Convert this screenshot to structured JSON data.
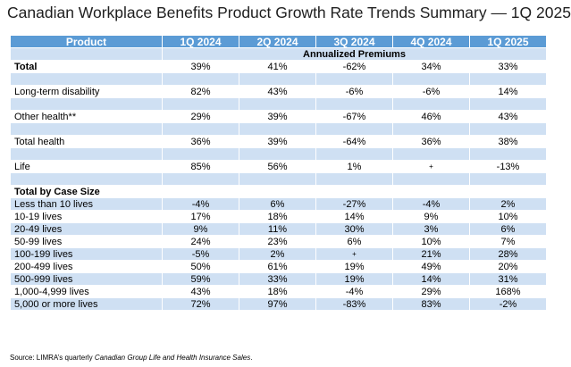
{
  "title": "Canadian Workplace Benefits Product Growth Rate Trends Summary — 1Q 2025",
  "headers": [
    "Product",
    "1Q 2024",
    "2Q 2024",
    "3Q 2024",
    "4Q 2024",
    "1Q 2025"
  ],
  "subheader": "Annualized Premiums",
  "rows": {
    "total": {
      "label": "Total",
      "v": [
        "39%",
        "41%",
        "-62%",
        "34%",
        "33%"
      ]
    },
    "ltd": {
      "label": "Long-term disability",
      "v": [
        "82%",
        "43%",
        "-6%",
        "-6%",
        "14%"
      ]
    },
    "other_health": {
      "label": "Other health**",
      "v": [
        "29%",
        "39%",
        "-67%",
        "46%",
        "43%"
      ]
    },
    "total_health": {
      "label": "Total health",
      "v": [
        "36%",
        "39%",
        "-64%",
        "36%",
        "38%"
      ]
    },
    "life": {
      "label": "Life",
      "v": [
        "85%",
        "56%",
        "1%",
        "+",
        "-13%"
      ]
    }
  },
  "case_size_heading": "Total by Case Size",
  "case_size": [
    {
      "label": "Less than 10 lives",
      "v": [
        "-4%",
        "6%",
        "-27%",
        "-4%",
        "2%"
      ]
    },
    {
      "label": "10-19 lives",
      "v": [
        "17%",
        "18%",
        "14%",
        "9%",
        "10%"
      ]
    },
    {
      "label": "20-49 lives",
      "v": [
        "9%",
        "11%",
        "30%",
        "3%",
        "6%"
      ]
    },
    {
      "label": "50-99 lives",
      "v": [
        "24%",
        "23%",
        "6%",
        "10%",
        "7%"
      ]
    },
    {
      "label": "100-199 lives",
      "v": [
        "-5%",
        "2%",
        "+",
        "21%",
        "28%"
      ]
    },
    {
      "label": "200-499 lives",
      "v": [
        "50%",
        "61%",
        "19%",
        "49%",
        "20%"
      ]
    },
    {
      "label": "500-999 lives",
      "v": [
        "59%",
        "33%",
        "19%",
        "14%",
        "31%"
      ]
    },
    {
      "label": "1,000-4,999 lives",
      "v": [
        "43%",
        "18%",
        "-4%",
        "29%",
        "168%"
      ]
    },
    {
      "label": "5,000 or more lives",
      "v": [
        "72%",
        "97%",
        "-83%",
        "83%",
        "-2%"
      ]
    }
  ],
  "source": {
    "prefix": "Source: LIMRA’s quarterly ",
    "italic": "Canadian Group Life and Health Insurance Sales",
    "suffix": "."
  },
  "colors": {
    "header": "#5b9bd5",
    "band": "#cfe0f3"
  }
}
